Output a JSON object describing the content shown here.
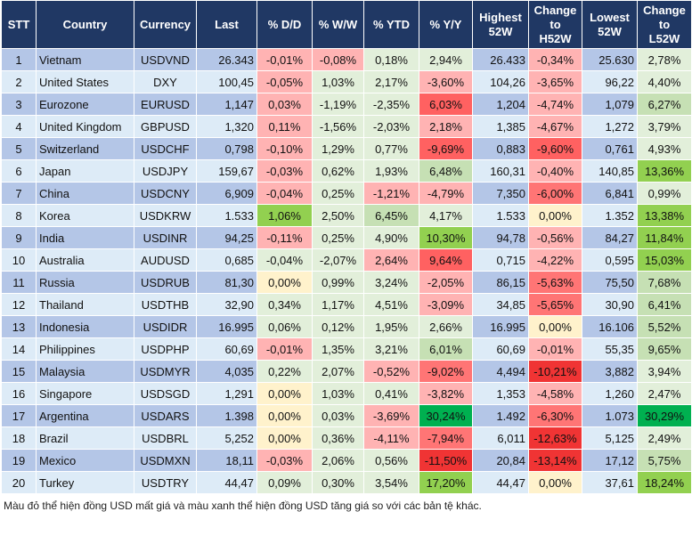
{
  "palette": {
    "header": "#203864",
    "row_odd": "#b4c6e7",
    "row_even": "#ddebf7",
    "r1": "#ffb3b3",
    "r2": "#ff7575",
    "r3": "#ff6161",
    "r4": "#f03434",
    "g1": "#e2efda",
    "g2": "#c6e0b4",
    "g3": "#92d050",
    "g4": "#00b050",
    "y": "#fff2cc"
  },
  "headers": [
    "STT",
    "Country",
    "Currency",
    "Last",
    "% D/D",
    "% W/W",
    "% YTD",
    "% Y/Y",
    "Highest\n52W",
    "Change\nto\nH52W",
    "Lowest\n52W",
    "Change\nto\nL52W"
  ],
  "rows": [
    {
      "stt": "1",
      "country": "Vietnam",
      "currency": "USDVND",
      "last": "26.343",
      "dd": "-0,01%",
      "ww": "-0,08%",
      "ytd": "0,18%",
      "yy": "2,94%",
      "high": "26.433",
      "h52": "-0,34%",
      "low": "25.630",
      "l52": "2,78%",
      "fills": [
        "r1",
        "r1",
        "g1",
        "g1",
        "r1",
        "g1"
      ]
    },
    {
      "stt": "2",
      "country": "United States",
      "currency": "DXY",
      "last": "100,45",
      "dd": "-0,05%",
      "ww": "1,03%",
      "ytd": "2,17%",
      "yy": "-3,60%",
      "high": "104,26",
      "h52": "-3,65%",
      "low": "96,22",
      "l52": "4,40%",
      "fills": [
        "r1",
        "g1",
        "g1",
        "r1",
        "r1",
        "g1"
      ]
    },
    {
      "stt": "3",
      "country": "Eurozone",
      "currency": "EURUSD",
      "last": "1,147",
      "dd": "0,03%",
      "ww": "-1,19%",
      "ytd": "-2,35%",
      "yy": "6,03%",
      "high": "1,204",
      "h52": "-4,74%",
      "low": "1,079",
      "l52": "6,27%",
      "fills": [
        "r1",
        "g1",
        "g1",
        "r3",
        "r1",
        "g2"
      ]
    },
    {
      "stt": "4",
      "country": "United Kingdom",
      "currency": "GBPUSD",
      "last": "1,320",
      "dd": "0,11%",
      "ww": "-1,56%",
      "ytd": "-2,03%",
      "yy": "2,18%",
      "high": "1,385",
      "h52": "-4,67%",
      "low": "1,272",
      "l52": "3,79%",
      "fills": [
        "r1",
        "g1",
        "g1",
        "r1",
        "r1",
        "g1"
      ]
    },
    {
      "stt": "5",
      "country": "Switzerland",
      "currency": "USDCHF",
      "last": "0,798",
      "dd": "-0,10%",
      "ww": "1,29%",
      "ytd": "0,77%",
      "yy": "-9,69%",
      "high": "0,883",
      "h52": "-9,60%",
      "low": "0,761",
      "l52": "4,93%",
      "fills": [
        "r1",
        "g1",
        "g1",
        "r3",
        "r3",
        "g1"
      ]
    },
    {
      "stt": "6",
      "country": "Japan",
      "currency": "USDJPY",
      "last": "159,67",
      "dd": "-0,03%",
      "ww": "0,62%",
      "ytd": "1,93%",
      "yy": "6,48%",
      "high": "160,31",
      "h52": "-0,40%",
      "low": "140,85",
      "l52": "13,36%",
      "fills": [
        "r1",
        "g1",
        "g1",
        "g2",
        "r1",
        "g3"
      ]
    },
    {
      "stt": "7",
      "country": "China",
      "currency": "USDCNY",
      "last": "6,909",
      "dd": "-0,04%",
      "ww": "0,25%",
      "ytd": "-1,21%",
      "yy": "-4,79%",
      "high": "7,350",
      "h52": "-6,00%",
      "low": "6,841",
      "l52": "0,99%",
      "fills": [
        "r1",
        "g1",
        "r1",
        "r1",
        "r2",
        "g1"
      ]
    },
    {
      "stt": "8",
      "country": "Korea",
      "currency": "USDKRW",
      "last": "1.533",
      "dd": "1,06%",
      "ww": "2,50%",
      "ytd": "6,45%",
      "yy": "4,17%",
      "high": "1.533",
      "h52": "0,00%",
      "low": "1.352",
      "l52": "13,38%",
      "fills": [
        "g3",
        "g1",
        "g2",
        "g1",
        "y",
        "g3"
      ]
    },
    {
      "stt": "9",
      "country": "India",
      "currency": "USDINR",
      "last": "94,25",
      "dd": "-0,11%",
      "ww": "0,25%",
      "ytd": "4,90%",
      "yy": "10,30%",
      "high": "94,78",
      "h52": "-0,56%",
      "low": "84,27",
      "l52": "11,84%",
      "fills": [
        "r1",
        "g1",
        "g1",
        "g3",
        "r1",
        "g3"
      ]
    },
    {
      "stt": "10",
      "country": "Australia",
      "currency": "AUDUSD",
      "last": "0,685",
      "dd": "-0,04%",
      "ww": "-2,07%",
      "ytd": "2,64%",
      "yy": "9,64%",
      "high": "0,715",
      "h52": "-4,22%",
      "low": "0,595",
      "l52": "15,03%",
      "fills": [
        "g1",
        "g1",
        "r1",
        "r3",
        "r1",
        "g3"
      ]
    },
    {
      "stt": "11",
      "country": "Russia",
      "currency": "USDRUB",
      "last": "81,30",
      "dd": "0,00%",
      "ww": "0,99%",
      "ytd": "3,24%",
      "yy": "-2,05%",
      "high": "86,15",
      "h52": "-5,63%",
      "low": "75,50",
      "l52": "7,68%",
      "fills": [
        "y",
        "g1",
        "g1",
        "r1",
        "r2",
        "g2"
      ]
    },
    {
      "stt": "12",
      "country": "Thailand",
      "currency": "USDTHB",
      "last": "32,90",
      "dd": "0,34%",
      "ww": "1,17%",
      "ytd": "4,51%",
      "yy": "-3,09%",
      "high": "34,85",
      "h52": "-5,65%",
      "low": "30,90",
      "l52": "6,41%",
      "fills": [
        "g1",
        "g1",
        "g1",
        "r1",
        "r2",
        "g2"
      ]
    },
    {
      "stt": "13",
      "country": "Indonesia",
      "currency": "USDIDR",
      "last": "16.995",
      "dd": "0,06%",
      "ww": "0,12%",
      "ytd": "1,95%",
      "yy": "2,66%",
      "high": "16.995",
      "h52": "0,00%",
      "low": "16.106",
      "l52": "5,52%",
      "fills": [
        "g1",
        "g1",
        "g1",
        "g1",
        "y",
        "g2"
      ]
    },
    {
      "stt": "14",
      "country": "Philippines",
      "currency": "USDPHP",
      "last": "60,69",
      "dd": "-0,01%",
      "ww": "1,35%",
      "ytd": "3,21%",
      "yy": "6,01%",
      "high": "60,69",
      "h52": "-0,01%",
      "low": "55,35",
      "l52": "9,65%",
      "fills": [
        "r1",
        "g1",
        "g1",
        "g2",
        "r1",
        "g2"
      ]
    },
    {
      "stt": "15",
      "country": "Malaysia",
      "currency": "USDMYR",
      "last": "4,035",
      "dd": "0,22%",
      "ww": "2,07%",
      "ytd": "-0,52%",
      "yy": "-9,02%",
      "high": "4,494",
      "h52": "-10,21%",
      "low": "3,882",
      "l52": "3,94%",
      "fills": [
        "g1",
        "g1",
        "r1",
        "r2",
        "r4",
        "g1"
      ]
    },
    {
      "stt": "16",
      "country": "Singapore",
      "currency": "USDSGD",
      "last": "1,291",
      "dd": "0,00%",
      "ww": "1,03%",
      "ytd": "0,41%",
      "yy": "-3,82%",
      "high": "1,353",
      "h52": "-4,58%",
      "low": "1,260",
      "l52": "2,47%",
      "fills": [
        "y",
        "g1",
        "g1",
        "r1",
        "r1",
        "g1"
      ]
    },
    {
      "stt": "17",
      "country": "Argentina",
      "currency": "USDARS",
      "last": "1.398",
      "dd": "0,00%",
      "ww": "0,03%",
      "ytd": "-3,69%",
      "yy": "30,24%",
      "high": "1.492",
      "h52": "-6,30%",
      "low": "1.073",
      "l52": "30,29%",
      "fills": [
        "y",
        "g1",
        "r1",
        "g4",
        "r2",
        "g4"
      ]
    },
    {
      "stt": "18",
      "country": "Brazil",
      "currency": "USDBRL",
      "last": "5,252",
      "dd": "0,00%",
      "ww": "0,36%",
      "ytd": "-4,11%",
      "yy": "-7,94%",
      "high": "6,011",
      "h52": "-12,63%",
      "low": "5,125",
      "l52": "2,49%",
      "fills": [
        "y",
        "g1",
        "r1",
        "r2",
        "r4",
        "g1"
      ]
    },
    {
      "stt": "19",
      "country": "Mexico",
      "currency": "USDMXN",
      "last": "18,11",
      "dd": "-0,03%",
      "ww": "2,06%",
      "ytd": "0,56%",
      "yy": "-11,50%",
      "high": "20,84",
      "h52": "-13,14%",
      "low": "17,12",
      "l52": "5,75%",
      "fills": [
        "r1",
        "g1",
        "g1",
        "r4",
        "r4",
        "g2"
      ]
    },
    {
      "stt": "20",
      "country": "Turkey",
      "currency": "USDTRY",
      "last": "44,47",
      "dd": "0,09%",
      "ww": "0,30%",
      "ytd": "3,54%",
      "yy": "17,20%",
      "high": "44,47",
      "h52": "0,00%",
      "low": "37,61",
      "l52": "18,24%",
      "fills": [
        "g1",
        "g1",
        "g1",
        "g3",
        "y",
        "g3"
      ]
    }
  ],
  "footer": "Màu đỏ thể hiện đồng USD mất giá và màu xanh thể hiện đồng USD tăng giá so với các bản tệ khác."
}
